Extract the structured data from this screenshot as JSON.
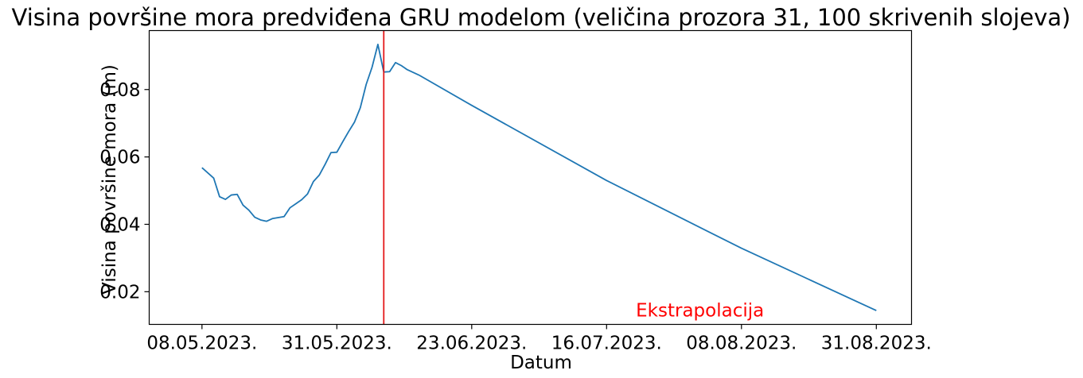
{
  "chart_data": {
    "type": "line",
    "title": "Visina površine mora predviđena GRU modelom (veličina prozora 31, 100 skrivenih slojeva)",
    "xlabel": "Datum",
    "ylabel": "Visina površine mora (m)",
    "x_axis": {
      "type": "date",
      "range": [
        "2023-04-29",
        "2023-09-06"
      ],
      "ticks": [
        "2023-05-08",
        "2023-05-31",
        "2023-06-23",
        "2023-07-16",
        "2023-08-08",
        "2023-08-31"
      ],
      "tick_labels": [
        "08.05.2023.",
        "31.05.2023.",
        "23.06.2023.",
        "16.07.2023.",
        "08.08.2023.",
        "31.08.2023."
      ]
    },
    "y_axis": {
      "range": [
        0.0103,
        0.0975
      ],
      "ticks": [
        0.02,
        0.04,
        0.06,
        0.08
      ],
      "tick_labels": [
        "0.02",
        "0.04",
        "0.06",
        "0.08"
      ]
    },
    "grid": false,
    "series": [
      {
        "color": "#1f77b4",
        "points": [
          [
            "2023-05-08",
            0.0568
          ],
          [
            "2023-05-10",
            0.0537
          ],
          [
            "2023-05-11",
            0.0482
          ],
          [
            "2023-05-12",
            0.0474
          ],
          [
            "2023-05-13",
            0.0487
          ],
          [
            "2023-05-14",
            0.0489
          ],
          [
            "2023-05-15",
            0.0457
          ],
          [
            "2023-05-16",
            0.0442
          ],
          [
            "2023-05-17",
            0.0421
          ],
          [
            "2023-05-18",
            0.0413
          ],
          [
            "2023-05-19",
            0.0409
          ],
          [
            "2023-05-20",
            0.0417
          ],
          [
            "2023-05-22",
            0.0423
          ],
          [
            "2023-05-23",
            0.0449
          ],
          [
            "2023-05-24",
            0.0461
          ],
          [
            "2023-05-25",
            0.0473
          ],
          [
            "2023-05-26",
            0.049
          ],
          [
            "2023-05-27",
            0.0527
          ],
          [
            "2023-05-28",
            0.0546
          ],
          [
            "2023-05-29",
            0.0578
          ],
          [
            "2023-05-30",
            0.0613
          ],
          [
            "2023-05-31",
            0.0614
          ],
          [
            "2023-06-01",
            0.0645
          ],
          [
            "2023-06-02",
            0.0675
          ],
          [
            "2023-06-03",
            0.0703
          ],
          [
            "2023-06-04",
            0.0746
          ],
          [
            "2023-06-05",
            0.0815
          ],
          [
            "2023-06-06",
            0.0866
          ],
          [
            "2023-06-07",
            0.0934
          ],
          [
            "2023-06-08",
            0.0852
          ],
          [
            "2023-06-09",
            0.0853
          ],
          [
            "2023-06-10",
            0.088
          ],
          [
            "2023-06-11",
            0.0871
          ],
          [
            "2023-06-12",
            0.0859
          ],
          [
            "2023-06-14",
            0.0843
          ],
          [
            "2023-06-23",
            0.0753
          ],
          [
            "2023-07-16",
            0.053
          ],
          [
            "2023-08-08",
            0.0329
          ],
          [
            "2023-08-31",
            0.0144
          ]
        ]
      }
    ],
    "vertical_line": {
      "x": "2023-06-08",
      "color": "#e41a1c"
    },
    "annotation": {
      "text": "Ekstrapolacija",
      "x": "2023-07-21",
      "y": 0.0145,
      "color": "#ff0000"
    }
  }
}
